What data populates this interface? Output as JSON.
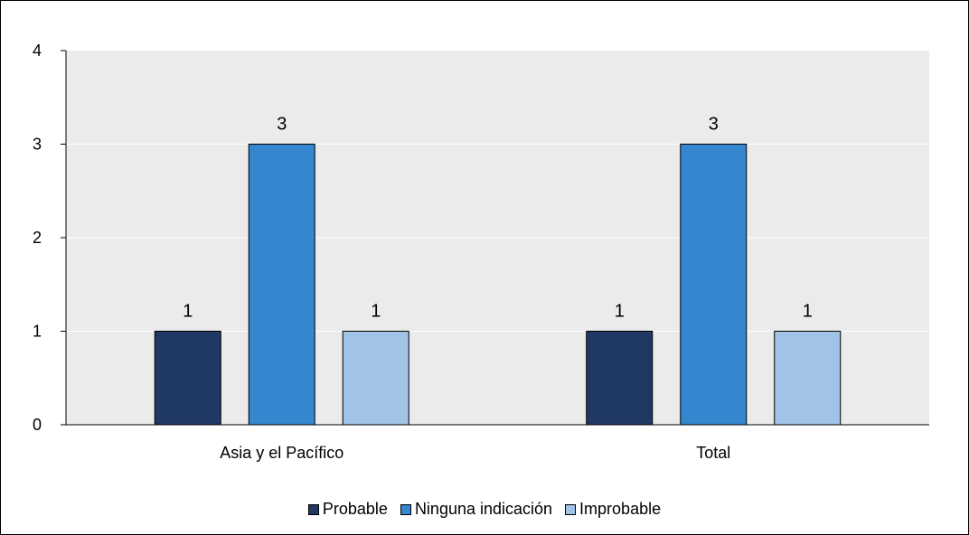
{
  "chart_data": {
    "type": "bar",
    "categories": [
      "Asia y el Pacífico",
      "Total"
    ],
    "series": [
      {
        "name": "Probable",
        "values": [
          1,
          1
        ],
        "color": "#203864"
      },
      {
        "name": "Ninguna indicación",
        "values": [
          3,
          3
        ],
        "color": "#3586cf"
      },
      {
        "name": "Improbable",
        "values": [
          1,
          1
        ],
        "color": "#a1c3e6"
      }
    ],
    "ylim": [
      0,
      4
    ],
    "yticks": [
      0,
      1,
      2,
      3,
      4
    ],
    "grid": true,
    "legend_position": "bottom",
    "plot_background": "#ebebeb",
    "gridline_color": "#ffffff"
  }
}
